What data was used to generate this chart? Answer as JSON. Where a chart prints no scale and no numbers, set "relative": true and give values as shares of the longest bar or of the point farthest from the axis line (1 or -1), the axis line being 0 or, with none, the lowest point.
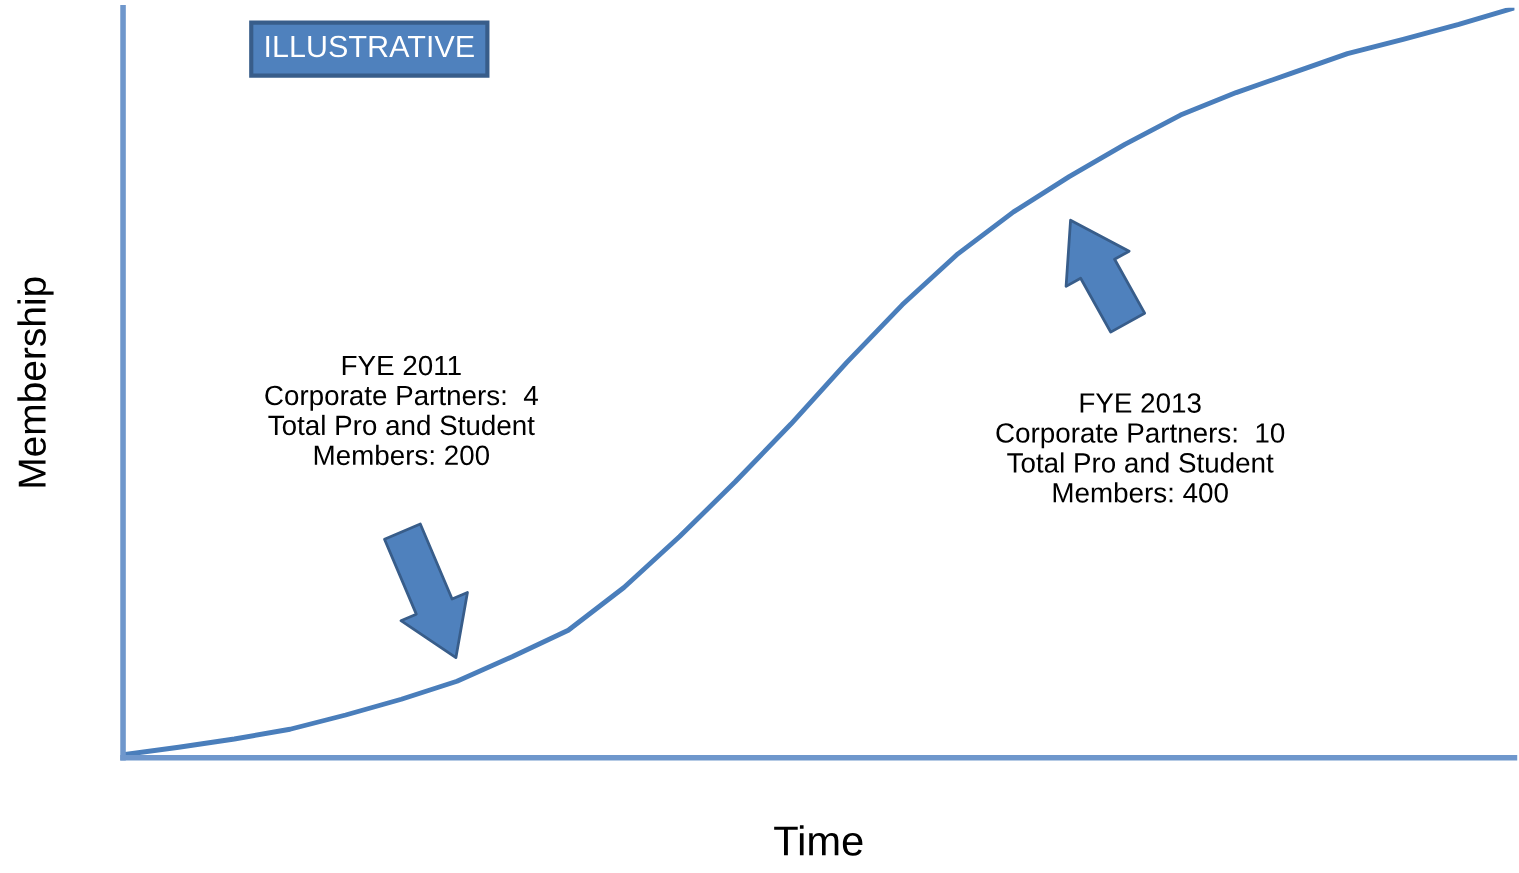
{
  "chart_data": {
    "type": "line",
    "relative": true,
    "xlabel": "Time",
    "ylabel": "Membership",
    "categories": [
      null,
      null,
      null,
      null,
      null,
      null,
      null,
      null,
      null,
      null,
      null,
      null,
      null,
      null,
      null,
      null,
      null,
      null,
      null,
      null,
      null,
      null,
      null,
      null,
      null,
      null
    ],
    "series": [
      {
        "color": "#4a7ebb",
        "values": [
          0.004,
          0.014,
          0.025,
          0.038,
          0.057,
          0.078,
          0.102,
          0.135,
          0.17,
          0.227,
          0.295,
          0.368,
          0.445,
          0.527,
          0.604,
          0.672,
          0.728,
          0.775,
          0.818,
          0.857,
          0.887,
          0.913,
          0.939,
          0.958,
          0.978,
          1.0
        ]
      }
    ],
    "annotations": [
      "ILLUSTRATIVE",
      "FYE 2011\nCorporate Partners:  4\nTotal Pro and Student\nMembers: 200",
      "FYE 2013\nCorporate Partners:  10\nTotal Pro and Student\nMembers: 400"
    ],
    "grid": false,
    "legend": false,
    "marker": "none",
    "line_style": "solid"
  }
}
